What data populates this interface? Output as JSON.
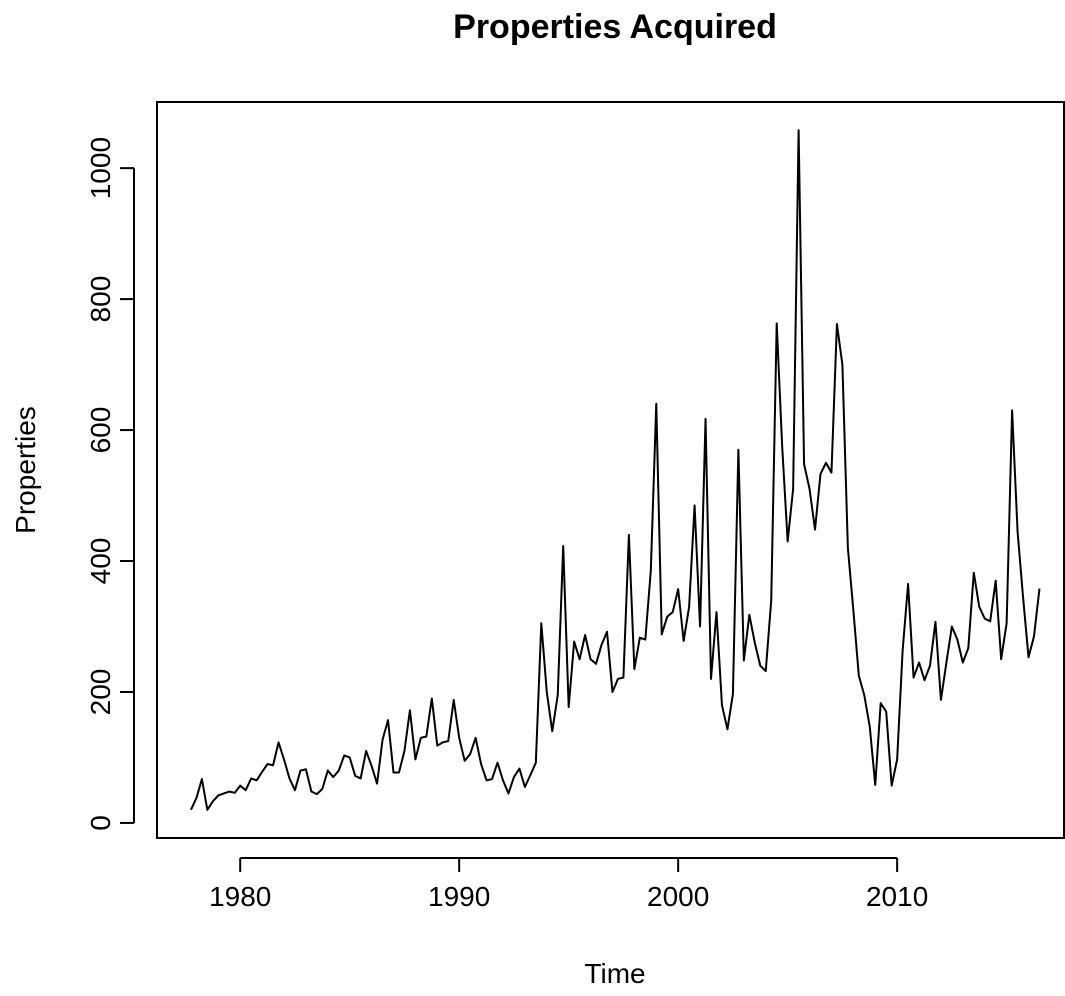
{
  "chart_data": {
    "type": "line",
    "title": "Properties Acquired",
    "x_label": "Time",
    "y_label": "Properties",
    "x": [
      1977.75,
      1978,
      1978.25,
      1978.5,
      1978.75,
      1979,
      1979.25,
      1979.5,
      1979.75,
      1980,
      1980.25,
      1980.5,
      1980.75,
      1981,
      1981.25,
      1981.5,
      1981.75,
      1982,
      1982.25,
      1982.5,
      1982.75,
      1983,
      1983.25,
      1983.5,
      1983.75,
      1984,
      1984.25,
      1984.5,
      1984.75,
      1985,
      1985.25,
      1985.5,
      1985.75,
      1986,
      1986.25,
      1986.5,
      1986.75,
      1987,
      1987.25,
      1987.5,
      1987.75,
      1988,
      1988.25,
      1988.5,
      1988.75,
      1989,
      1989.25,
      1989.5,
      1989.75,
      1990,
      1990.25,
      1990.5,
      1990.75,
      1991,
      1991.25,
      1991.5,
      1991.75,
      1992,
      1992.25,
      1992.5,
      1992.75,
      1993,
      1993.25,
      1993.5,
      1993.75,
      1994,
      1994.25,
      1994.5,
      1994.75,
      1995,
      1995.25,
      1995.5,
      1995.75,
      1996,
      1996.25,
      1996.5,
      1996.75,
      1997,
      1997.25,
      1997.5,
      1997.75,
      1998,
      1998.25,
      1998.5,
      1998.75,
      1999,
      1999.25,
      1999.5,
      1999.75,
      2000,
      2000.25,
      2000.5,
      2000.75,
      2001,
      2001.25,
      2001.5,
      2001.75,
      2002,
      2002.25,
      2002.5,
      2002.75,
      2003,
      2003.25,
      2003.5,
      2003.75,
      2004,
      2004.25,
      2004.5,
      2004.75,
      2005,
      2005.25,
      2005.5,
      2005.75,
      2006,
      2006.25,
      2006.5,
      2006.75,
      2007,
      2007.25,
      2007.5,
      2007.75,
      2008,
      2008.25,
      2008.5,
      2008.75,
      2009,
      2009.25,
      2009.5,
      2009.75,
      2010,
      2010.25,
      2010.5,
      2010.75,
      2011,
      2011.25,
      2011.5,
      2011.75,
      2012,
      2012.25,
      2012.5,
      2012.75,
      2013,
      2013.25,
      2013.5,
      2013.75,
      2014,
      2014.25,
      2014.5,
      2014.75,
      2015,
      2015.25,
      2015.5,
      2015.75,
      2016,
      2016.25,
      2016.5
    ],
    "series": [
      {
        "name": "Properties",
        "color": "#000000",
        "values": [
          20,
          38,
          67,
          20,
          33,
          42,
          45,
          48,
          46,
          57,
          50,
          68,
          65,
          78,
          90,
          88,
          123,
          97,
          68,
          50,
          80,
          82,
          48,
          44,
          52,
          80,
          70,
          80,
          103,
          100,
          72,
          68,
          110,
          87,
          60,
          127,
          157,
          77,
          77,
          110,
          172,
          97,
          130,
          132,
          190,
          118,
          123,
          125,
          188,
          130,
          95,
          105,
          130,
          90,
          65,
          67,
          92,
          65,
          45,
          70,
          83,
          55,
          73,
          92,
          305,
          200,
          140,
          195,
          423,
          177,
          277,
          250,
          287,
          250,
          243,
          272,
          292,
          200,
          220,
          222,
          440,
          235,
          283,
          280,
          385,
          640,
          288,
          315,
          322,
          357,
          278,
          330,
          485,
          300,
          617,
          220,
          322,
          180,
          143,
          197,
          570,
          248,
          318,
          275,
          240,
          232,
          340,
          763,
          575,
          430,
          510,
          1058,
          548,
          510,
          448,
          533,
          550,
          535,
          762,
          700,
          420,
          325,
          225,
          195,
          147,
          58,
          183,
          170,
          57,
          97,
          263,
          365,
          222,
          245,
          218,
          240,
          307,
          188,
          245,
          300,
          280,
          245,
          267,
          382,
          330,
          312,
          308,
          370,
          250,
          305,
          630,
          445,
          345,
          253,
          285,
          358
        ]
      }
    ],
    "xlim": [
      1976.2,
      2017.62
    ],
    "xticks": [
      1980,
      1990,
      2000,
      2010
    ],
    "ylim": [
      -23,
      1101
    ],
    "yticks": [
      0,
      200,
      400,
      600,
      800,
      1000
    ]
  }
}
